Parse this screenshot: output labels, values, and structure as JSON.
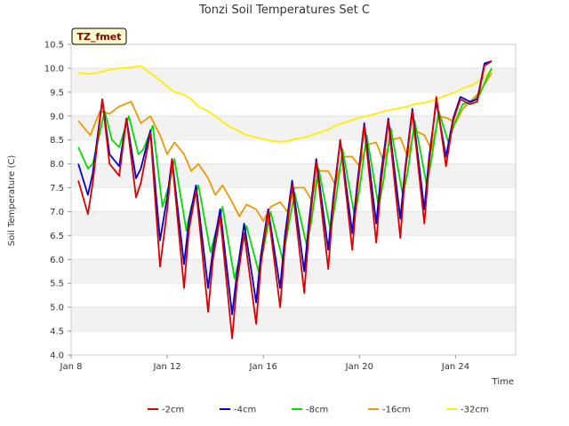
{
  "chart_data": {
    "type": "line",
    "title": "Tonzi Soil Temperatures Set C",
    "xlabel": "Time",
    "ylabel": "Soil Temperature (C)",
    "badge": "TZ_fmet",
    "x_unit": "days (January)",
    "xlim": [
      8,
      26.5
    ],
    "ylim": [
      4.0,
      10.5
    ],
    "x_ticks": [
      {
        "value": 8,
        "label": "Jan 8"
      },
      {
        "value": 12,
        "label": "Jan 12"
      },
      {
        "value": 16,
        "label": "Jan 16"
      },
      {
        "value": 20,
        "label": "Jan 20"
      },
      {
        "value": 24,
        "label": "Jan 24"
      }
    ],
    "y_ticks": [
      "4.0",
      "4.5",
      "5.0",
      "5.5",
      "6.0",
      "6.5",
      "7.0",
      "7.5",
      "8.0",
      "8.5",
      "9.0",
      "9.5",
      "10.0",
      "10.5"
    ],
    "grid": "horizontal alternating bands",
    "legend_position": "bottom",
    "series": [
      {
        "name": "-2cm",
        "color": "#dd0000",
        "x": [
          8.3,
          8.7,
          8.9,
          9.3,
          9.6,
          10.0,
          10.3,
          10.7,
          10.9,
          11.3,
          11.7,
          12.0,
          12.2,
          12.7,
          12.9,
          13.2,
          13.7,
          13.9,
          14.2,
          14.7,
          14.9,
          15.2,
          15.7,
          15.9,
          16.2,
          16.7,
          16.9,
          17.2,
          17.7,
          17.9,
          18.2,
          18.7,
          18.9,
          19.2,
          19.7,
          19.9,
          20.2,
          20.7,
          20.9,
          21.2,
          21.7,
          21.9,
          22.2,
          22.7,
          22.9,
          23.2,
          23.6,
          23.9,
          24.2,
          24.6,
          24.9,
          25.2,
          25.5
        ],
        "y": [
          7.65,
          6.95,
          7.6,
          9.35,
          8.0,
          7.75,
          8.95,
          7.3,
          7.6,
          8.65,
          5.85,
          7.05,
          8.1,
          5.4,
          6.6,
          7.45,
          4.9,
          6.0,
          6.9,
          4.35,
          5.5,
          6.55,
          4.65,
          5.9,
          7.0,
          5.0,
          6.3,
          7.55,
          5.3,
          6.6,
          8.05,
          5.8,
          7.1,
          8.5,
          6.2,
          7.4,
          8.8,
          6.35,
          7.6,
          8.9,
          6.45,
          7.8,
          9.1,
          6.75,
          8.0,
          9.4,
          7.95,
          8.9,
          9.35,
          9.25,
          9.3,
          10.05,
          10.15
        ]
      },
      {
        "name": "-4cm",
        "color": "#0000cc",
        "x": [
          8.3,
          8.7,
          8.9,
          9.3,
          9.6,
          10.0,
          10.3,
          10.7,
          10.9,
          11.3,
          11.7,
          12.0,
          12.2,
          12.7,
          12.9,
          13.2,
          13.7,
          13.9,
          14.2,
          14.7,
          14.9,
          15.2,
          15.7,
          15.9,
          16.2,
          16.7,
          16.9,
          17.2,
          17.7,
          17.9,
          18.2,
          18.7,
          18.9,
          19.2,
          19.7,
          19.9,
          20.2,
          20.7,
          20.9,
          21.2,
          21.7,
          21.9,
          22.2,
          22.7,
          22.9,
          23.2,
          23.6,
          23.9,
          24.2,
          24.6,
          24.9,
          25.2,
          25.5
        ],
        "y": [
          8.0,
          7.35,
          7.8,
          9.35,
          8.2,
          7.95,
          8.95,
          7.7,
          7.9,
          8.7,
          6.4,
          7.3,
          8.1,
          5.9,
          6.8,
          7.55,
          5.4,
          6.2,
          7.05,
          4.85,
          5.7,
          6.75,
          5.1,
          6.1,
          7.05,
          5.4,
          6.5,
          7.65,
          5.75,
          6.8,
          8.1,
          6.2,
          7.25,
          8.5,
          6.55,
          7.55,
          8.85,
          6.75,
          7.8,
          8.95,
          6.85,
          7.9,
          9.15,
          7.05,
          8.15,
          9.3,
          8.15,
          8.95,
          9.4,
          9.3,
          9.35,
          10.1,
          10.15
        ]
      },
      {
        "name": "-8cm",
        "color": "#00dd00",
        "x": [
          8.3,
          8.7,
          8.9,
          9.4,
          9.7,
          10.0,
          10.4,
          10.8,
          11.0,
          11.4,
          11.8,
          12.1,
          12.3,
          12.8,
          13.0,
          13.3,
          13.8,
          14.0,
          14.3,
          14.8,
          15.0,
          15.3,
          15.8,
          16.0,
          16.3,
          16.8,
          17.0,
          17.3,
          17.8,
          18.0,
          18.3,
          18.8,
          19.0,
          19.3,
          19.8,
          20.0,
          20.3,
          20.8,
          21.0,
          21.3,
          21.8,
          22.0,
          22.3,
          22.8,
          23.0,
          23.3,
          23.7,
          24.0,
          24.3,
          24.7,
          25.0,
          25.3,
          25.5
        ],
        "y": [
          8.35,
          7.9,
          8.0,
          9.1,
          8.5,
          8.35,
          9.0,
          8.2,
          8.3,
          8.8,
          7.1,
          7.6,
          8.1,
          6.6,
          7.1,
          7.55,
          6.15,
          6.55,
          7.1,
          5.6,
          6.0,
          6.7,
          5.75,
          6.2,
          7.0,
          6.0,
          6.55,
          7.4,
          6.3,
          6.8,
          7.9,
          6.6,
          7.2,
          8.3,
          6.9,
          7.45,
          8.6,
          7.1,
          7.65,
          8.75,
          7.35,
          7.8,
          8.9,
          7.55,
          8.1,
          9.1,
          8.45,
          8.9,
          9.25,
          9.3,
          9.45,
          9.8,
          10.0
        ]
      },
      {
        "name": "-16cm",
        "color": "#ee9900",
        "x": [
          8.3,
          8.8,
          9.2,
          9.6,
          10.0,
          10.5,
          10.9,
          11.3,
          11.7,
          12.0,
          12.3,
          12.7,
          13.0,
          13.3,
          13.7,
          14.0,
          14.3,
          14.7,
          15.0,
          15.3,
          15.7,
          16.0,
          16.3,
          16.7,
          17.0,
          17.3,
          17.7,
          18.0,
          18.3,
          18.7,
          19.0,
          19.3,
          19.7,
          20.0,
          20.3,
          20.7,
          21.0,
          21.3,
          21.7,
          22.0,
          22.3,
          22.7,
          23.0,
          23.3,
          23.7,
          24.0,
          24.3,
          24.7,
          25.0,
          25.5
        ],
        "y": [
          8.9,
          8.6,
          9.1,
          9.05,
          9.2,
          9.3,
          8.85,
          9.0,
          8.6,
          8.2,
          8.45,
          8.2,
          7.85,
          8.0,
          7.7,
          7.35,
          7.55,
          7.2,
          6.9,
          7.15,
          7.05,
          6.8,
          7.1,
          7.2,
          7.0,
          7.5,
          7.5,
          7.25,
          7.85,
          7.85,
          7.55,
          8.15,
          8.15,
          7.95,
          8.4,
          8.45,
          8.05,
          8.5,
          8.55,
          8.15,
          8.7,
          8.6,
          8.3,
          9.0,
          8.95,
          8.85,
          9.15,
          9.35,
          9.5,
          9.9
        ]
      },
      {
        "name": "-32cm",
        "color": "#ffee00",
        "x": [
          8.3,
          8.8,
          9.2,
          9.6,
          10.0,
          10.5,
          10.9,
          11.3,
          11.7,
          12.0,
          12.3,
          12.7,
          13.0,
          13.3,
          13.7,
          14.0,
          14.3,
          14.7,
          15.0,
          15.3,
          15.7,
          16.0,
          16.3,
          16.7,
          17.0,
          17.3,
          17.7,
          18.0,
          18.3,
          18.7,
          19.0,
          19.3,
          19.7,
          20.0,
          20.3,
          20.7,
          21.0,
          21.3,
          21.7,
          22.0,
          22.3,
          22.7,
          23.0,
          23.3,
          23.7,
          24.0,
          24.3,
          24.7,
          25.0,
          25.5
        ],
        "y": [
          9.9,
          9.88,
          9.92,
          9.97,
          10.0,
          10.02,
          10.05,
          9.9,
          9.75,
          9.62,
          9.5,
          9.45,
          9.35,
          9.2,
          9.1,
          9.0,
          8.88,
          8.75,
          8.68,
          8.6,
          8.55,
          8.52,
          8.48,
          8.46,
          8.47,
          8.52,
          8.55,
          8.6,
          8.65,
          8.72,
          8.8,
          8.85,
          8.92,
          8.97,
          9.0,
          9.05,
          9.1,
          9.13,
          9.17,
          9.2,
          9.25,
          9.28,
          9.32,
          9.38,
          9.45,
          9.5,
          9.58,
          9.65,
          9.75,
          9.95
        ]
      }
    ]
  }
}
